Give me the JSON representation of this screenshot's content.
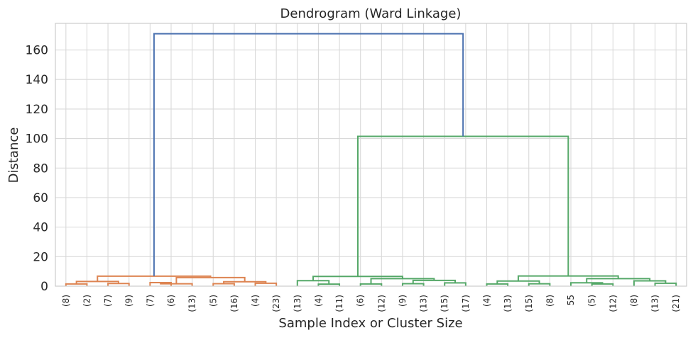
{
  "chart_data": {
    "type": "dendrogram",
    "title": "Dendrogram (Ward Linkage)",
    "xlabel": "Sample Index or Cluster Size",
    "ylabel": "Distance",
    "ylim": [
      0,
      178
    ],
    "yticks": [
      0,
      20,
      40,
      60,
      80,
      100,
      120,
      140,
      160
    ],
    "grid": true,
    "leaf_labels": [
      "(8)",
      "(2)",
      "(7)",
      "(9)",
      "(7)",
      "(6)",
      "(13)",
      "(5)",
      "(16)",
      "(4)",
      "(23)",
      "(13)",
      "(4)",
      "(11)",
      "(6)",
      "(12)",
      "(9)",
      "(13)",
      "(15)",
      "(17)",
      "(4)",
      "(13)",
      "(15)",
      "(8)",
      "55",
      "(5)",
      "(12)",
      "(8)",
      "(13)",
      "(21)"
    ],
    "colors": {
      "above_threshold": "#4c72b0",
      "cluster_1": "#dd8452",
      "cluster_2": "#55a868"
    },
    "links": [
      {
        "left": 0,
        "right": 1,
        "height": 1.5,
        "color": "cluster_1"
      },
      {
        "left": 2,
        "right": 3,
        "height": 1.8,
        "color": "cluster_1"
      },
      {
        "left": 30,
        "right": 31,
        "height": 3.2,
        "color": "cluster_1"
      },
      {
        "left": 4,
        "right": 5,
        "height": 2.4,
        "color": "cluster_1"
      },
      {
        "left": 33,
        "right": 6,
        "height": 1.6,
        "color": "cluster_1"
      },
      {
        "left": 7,
        "right": 8,
        "height": 1.7,
        "color": "cluster_1"
      },
      {
        "left": 9,
        "right": 10,
        "height": 2.0,
        "color": "cluster_1"
      },
      {
        "left": 35,
        "right": 36,
        "height": 3.0,
        "color": "cluster_1"
      },
      {
        "left": 34,
        "right": 37,
        "height": 5.8,
        "color": "cluster_1"
      },
      {
        "left": 32,
        "right": 38,
        "height": 6.8,
        "color": "cluster_1"
      },
      {
        "left": 12,
        "right": 13,
        "height": 1.4,
        "color": "cluster_2"
      },
      {
        "left": 11,
        "right": 40,
        "height": 3.7,
        "color": "cluster_2"
      },
      {
        "left": 14,
        "right": 15,
        "height": 1.5,
        "color": "cluster_2"
      },
      {
        "left": 16,
        "right": 17,
        "height": 1.7,
        "color": "cluster_2"
      },
      {
        "left": 18,
        "right": 19,
        "height": 2.2,
        "color": "cluster_2"
      },
      {
        "left": 43,
        "right": 44,
        "height": 3.9,
        "color": "cluster_2"
      },
      {
        "left": 42,
        "right": 45,
        "height": 5.1,
        "color": "cluster_2"
      },
      {
        "left": 41,
        "right": 46,
        "height": 6.6,
        "color": "cluster_2"
      },
      {
        "left": 20,
        "right": 21,
        "height": 1.5,
        "color": "cluster_2"
      },
      {
        "left": 22,
        "right": 23,
        "height": 1.6,
        "color": "cluster_2"
      },
      {
        "left": 48,
        "right": 49,
        "height": 3.5,
        "color": "cluster_2"
      },
      {
        "left": 25,
        "right": 26,
        "height": 1.5,
        "color": "cluster_2"
      },
      {
        "left": 24,
        "right": 51,
        "height": 2.3,
        "color": "cluster_2"
      },
      {
        "left": 28,
        "right": 29,
        "height": 2.0,
        "color": "cluster_2"
      },
      {
        "left": 27,
        "right": 53,
        "height": 3.6,
        "color": "cluster_2"
      },
      {
        "left": 52,
        "right": 54,
        "height": 5.1,
        "color": "cluster_2"
      },
      {
        "left": 50,
        "right": 55,
        "height": 6.9,
        "color": "cluster_2"
      },
      {
        "left": 47,
        "right": 56,
        "height": 101.5,
        "color": "cluster_2"
      },
      {
        "left": 39,
        "right": 57,
        "height": 171.0,
        "color": "above_threshold"
      }
    ]
  }
}
